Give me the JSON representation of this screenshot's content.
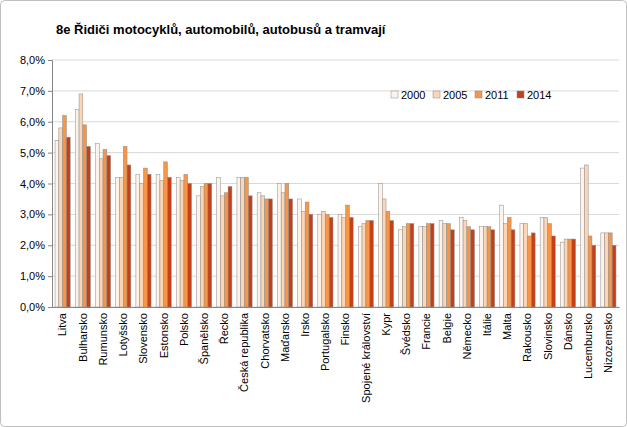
{
  "chart_data": {
    "type": "bar",
    "title": "8e Řidiči motocyklů, automobilů, autobusů a tramvají",
    "categories": [
      "Litva",
      "Bulharsko",
      "Rumunsko",
      "Lotyšsko",
      "Slovensko",
      "Estonsko",
      "Polsko",
      "Španělsko",
      "Řecko",
      "Česká republika",
      "Chorvatsko",
      "Maďarsko",
      "Irsko",
      "Portugalsko",
      "Finsko",
      "Spojené království",
      "Kypr",
      "Švédsko",
      "Francie",
      "Belgie",
      "Německo",
      "Itálie",
      "Malta",
      "Rakousko",
      "Slovinsko",
      "Dánsko",
      "Lucembursko",
      "Nizozemsko"
    ],
    "series": [
      {
        "name": "2000",
        "color": "#fdf3ea",
        "values": [
          5.4,
          6.4,
          5.3,
          4.2,
          4.3,
          4.3,
          4.2,
          3.6,
          4.2,
          4.2,
          3.7,
          4.0,
          3.5,
          3.0,
          3.0,
          2.6,
          4.0,
          2.5,
          2.6,
          2.8,
          2.9,
          2.6,
          3.3,
          2.7,
          2.9,
          2.1,
          4.5,
          2.4
        ]
      },
      {
        "name": "2005",
        "color": "#fbd5b5",
        "values": [
          5.8,
          6.9,
          4.8,
          4.2,
          4.0,
          4.1,
          4.1,
          3.9,
          3.6,
          4.2,
          3.6,
          3.7,
          3.1,
          3.1,
          2.9,
          2.7,
          3.5,
          2.6,
          2.6,
          2.7,
          2.8,
          2.6,
          2.7,
          2.7,
          2.9,
          2.2,
          4.6,
          2.4
        ]
      },
      {
        "name": "2011",
        "color": "#f79646",
        "values": [
          6.2,
          5.9,
          5.1,
          5.2,
          4.5,
          4.7,
          4.3,
          4.0,
          3.7,
          4.2,
          3.5,
          4.0,
          3.4,
          3.0,
          3.3,
          2.8,
          3.1,
          2.7,
          2.7,
          2.7,
          2.6,
          2.6,
          2.9,
          2.3,
          2.7,
          2.2,
          2.3,
          2.4
        ]
      },
      {
        "name": "2014",
        "color": "#c4401a",
        "values": [
          5.5,
          5.2,
          4.9,
          4.6,
          4.3,
          4.2,
          4.0,
          4.0,
          3.9,
          3.6,
          3.5,
          3.5,
          3.0,
          2.9,
          2.9,
          2.8,
          2.8,
          2.7,
          2.7,
          2.5,
          2.5,
          2.5,
          2.5,
          2.4,
          2.3,
          2.2,
          2.0,
          2.0
        ]
      }
    ],
    "ylim": [
      0,
      8
    ],
    "yticks": [
      {
        "value": 0,
        "label": "0,0%"
      },
      {
        "value": 1,
        "label": "1,0%"
      },
      {
        "value": 2,
        "label": "2,0%"
      },
      {
        "value": 3,
        "label": "3,0%"
      },
      {
        "value": 4,
        "label": "4,0%"
      },
      {
        "value": 5,
        "label": "5,0%"
      },
      {
        "value": 6,
        "label": "6,0%"
      },
      {
        "value": 7,
        "label": "7,0%"
      },
      {
        "value": 8,
        "label": "8,0%"
      }
    ],
    "grid": true,
    "legend": "upper right"
  }
}
